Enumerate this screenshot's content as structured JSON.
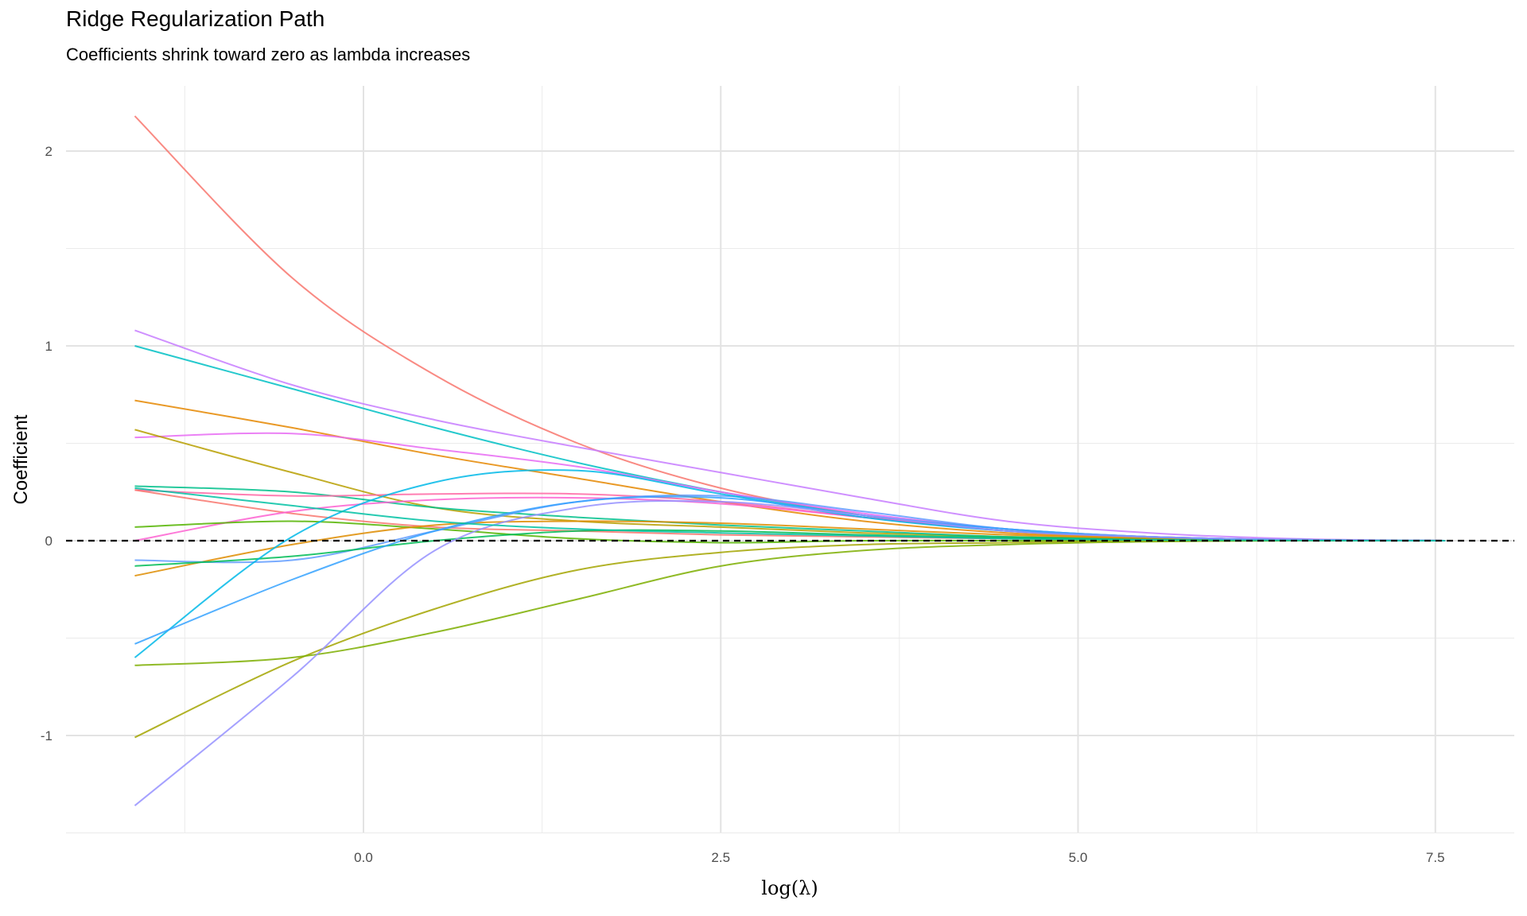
{
  "chart_data": {
    "type": "line",
    "title": "Ridge Regularization Path",
    "subtitle": "Coefficients shrink toward zero as lambda increases",
    "xlabel": "log(λ)",
    "ylabel": "Coefficient",
    "xlim": [
      -1.8,
      8.2
    ],
    "ylim": [
      -1.5,
      2.33
    ],
    "x_ticks": [
      0,
      2.5,
      5,
      7.5
    ],
    "x_tick_labels": [
      "0.0",
      "2.5",
      "5.0",
      "7.5"
    ],
    "x_minor": [
      -1.25,
      1.25,
      3.75,
      6.25
    ],
    "y_ticks": [
      -1,
      0,
      1,
      2
    ],
    "y_tick_labels": [
      "-1",
      "0",
      "1",
      "2"
    ],
    "y_minor": [
      -1.5,
      -0.5,
      0.5,
      1.5
    ],
    "grid": true,
    "reference_line": {
      "y": 0,
      "style": "dashed",
      "color": "#000000"
    },
    "x": [
      -1.6,
      -0.5,
      0.5,
      1.5,
      2.5,
      3.5,
      4.5,
      5.5,
      6.5,
      7.57
    ],
    "series": [
      {
        "color": "#F8766D",
        "values": [
          2.18,
          1.35,
          0.85,
          0.5,
          0.27,
          0.13,
          0.05,
          0.02,
          0.005,
          0
        ]
      },
      {
        "color": "#C77CFF",
        "values": [
          1.08,
          0.8,
          0.62,
          0.48,
          0.35,
          0.22,
          0.1,
          0.04,
          0.01,
          0
        ]
      },
      {
        "color": "#00BFC4",
        "values": [
          1.0,
          0.78,
          0.58,
          0.4,
          0.25,
          0.13,
          0.06,
          0.02,
          0.005,
          0
        ]
      },
      {
        "color": "#E58700",
        "values": [
          0.72,
          0.58,
          0.44,
          0.32,
          0.2,
          0.1,
          0.04,
          0.015,
          0.003,
          0
        ]
      },
      {
        "color": "#E76BF3",
        "values": [
          0.53,
          0.55,
          0.47,
          0.38,
          0.25,
          0.14,
          0.06,
          0.02,
          0.005,
          0
        ]
      },
      {
        "color": "#B79F00",
        "values": [
          0.57,
          0.35,
          0.17,
          0.1,
          0.07,
          0.04,
          0.02,
          0.01,
          0.002,
          0
        ]
      },
      {
        "color": "#00C08B",
        "values": [
          0.28,
          0.25,
          0.17,
          0.12,
          0.08,
          0.05,
          0.02,
          0.01,
          0.002,
          0
        ]
      },
      {
        "color": "#FF67A4",
        "values": [
          0.26,
          0.23,
          0.24,
          0.24,
          0.2,
          0.12,
          0.05,
          0.02,
          0.005,
          0
        ]
      },
      {
        "color": "#F8766D",
        "values": [
          0.26,
          0.14,
          0.07,
          0.05,
          0.03,
          0.02,
          0.01,
          0.004,
          0.001,
          0
        ]
      },
      {
        "color": "#FD61D1",
        "values": [
          0.0,
          0.15,
          0.21,
          0.22,
          0.19,
          0.12,
          0.05,
          0.02,
          0.005,
          0
        ]
      },
      {
        "color": "#53B400",
        "values": [
          0.07,
          0.1,
          0.06,
          0.01,
          -0.01,
          0,
          0,
          0,
          0,
          0
        ]
      },
      {
        "color": "#DE8C00",
        "values": [
          -0.18,
          -0.02,
          0.08,
          0.1,
          0.09,
          0.06,
          0.03,
          0.01,
          0.002,
          0
        ]
      },
      {
        "color": "#619CFF",
        "values": [
          -0.1,
          -0.1,
          0.05,
          0.2,
          0.23,
          0.15,
          0.06,
          0.02,
          0.005,
          0
        ]
      },
      {
        "color": "#00BC56",
        "values": [
          -0.13,
          -0.08,
          0.0,
          0.05,
          0.05,
          0.03,
          0.015,
          0.005,
          0.001,
          0
        ]
      },
      {
        "color": "#00B8E7",
        "values": [
          -0.6,
          0.02,
          0.3,
          0.36,
          0.24,
          0.12,
          0.05,
          0.02,
          0.005,
          0
        ]
      },
      {
        "color": "#35A2FF",
        "values": [
          -0.53,
          -0.2,
          0.05,
          0.2,
          0.22,
          0.13,
          0.06,
          0.02,
          0.005,
          0
        ]
      },
      {
        "color": "#A3A500",
        "values": [
          -1.01,
          -0.62,
          -0.35,
          -0.15,
          -0.06,
          -0.02,
          -0.01,
          0,
          0,
          0
        ]
      },
      {
        "color": "#7CAE00",
        "values": [
          -0.64,
          -0.6,
          -0.47,
          -0.3,
          -0.13,
          -0.05,
          -0.02,
          -0.005,
          0,
          0
        ]
      },
      {
        "color": "#9590FF",
        "values": [
          -1.36,
          -0.7,
          -0.05,
          0.17,
          0.2,
          0.13,
          0.05,
          0.02,
          0.005,
          0
        ]
      },
      {
        "color": "#00C1A3",
        "values": [
          0.27,
          0.18,
          0.1,
          0.06,
          0.04,
          0.025,
          0.01,
          0.004,
          0.001,
          0
        ]
      }
    ]
  }
}
